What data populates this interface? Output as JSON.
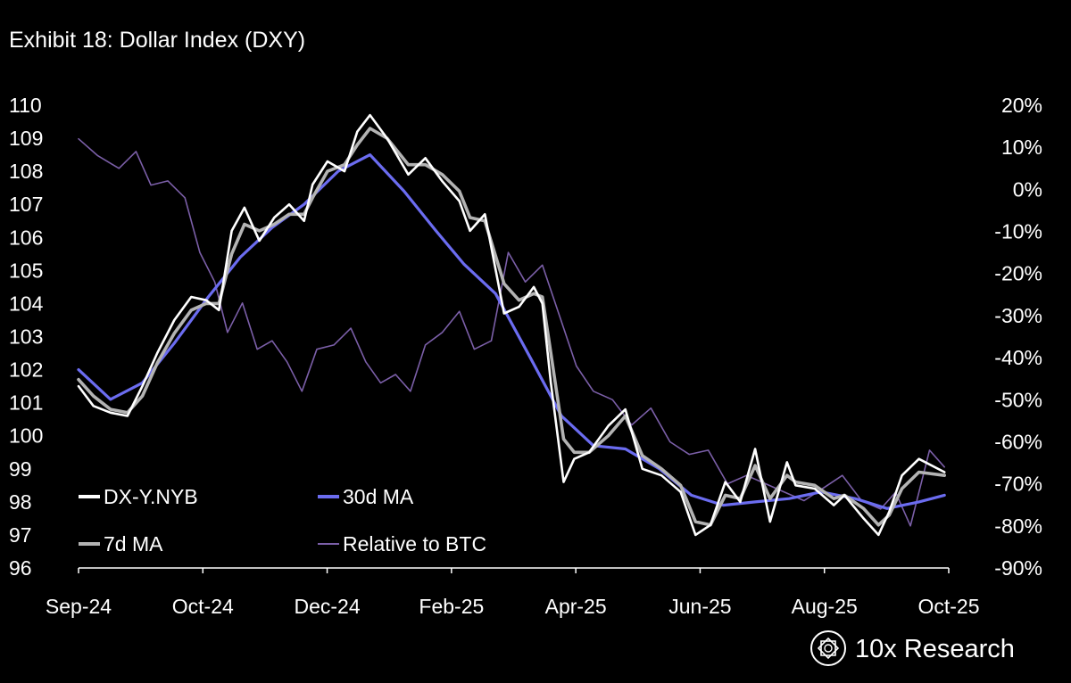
{
  "chart_data": {
    "type": "line",
    "title": "Exhibit 18: Dollar Index (DXY)",
    "brand": "10x Research",
    "x_tick_labels": [
      "Sep-24",
      "Oct-24",
      "Dec-24",
      "Feb-25",
      "Apr-25",
      "Jun-25",
      "Aug-25",
      "Oct-25"
    ],
    "x_domain": [
      "2024-09-01",
      "2025-10-15"
    ],
    "y_left": {
      "min": 96,
      "max": 110,
      "ticks": [
        "110",
        "109",
        "108",
        "107",
        "106",
        "105",
        "104",
        "103",
        "102",
        "101",
        "100",
        "99",
        "98",
        "97",
        "96"
      ]
    },
    "y_right": {
      "min": -90,
      "max": 20,
      "unit": "%",
      "ticks": [
        "20%",
        "10%",
        "0%",
        "-10%",
        "-20%",
        "-30%",
        "-40%",
        "-50%",
        "-60%",
        "-70%",
        "-80%",
        "-90%"
      ]
    },
    "legend": [
      {
        "label": "DX-Y.NYB",
        "color": "#ffffff",
        "axis": "left"
      },
      {
        "label": "30d MA",
        "color": "#6b6cf0",
        "axis": "left"
      },
      {
        "label": "7d MA",
        "color": "#b3b3b3",
        "axis": "left"
      },
      {
        "label": "Relative to BTC",
        "color": "#7b5fa8",
        "axis": "right"
      }
    ],
    "series": [
      {
        "name": "DX-Y.NYB",
        "axis": "left",
        "x": [
          "2024-09-01",
          "2024-09-08",
          "2024-09-16",
          "2024-09-24",
          "2024-10-01",
          "2024-10-08",
          "2024-10-16",
          "2024-10-24",
          "2024-10-31",
          "2024-11-06",
          "2024-11-12",
          "2024-11-18",
          "2024-11-25",
          "2024-12-02",
          "2024-12-09",
          "2024-12-16",
          "2024-12-20",
          "2024-12-27",
          "2025-01-04",
          "2025-01-10",
          "2025-01-16",
          "2025-01-24",
          "2025-02-03",
          "2025-02-11",
          "2025-02-19",
          "2025-02-27",
          "2025-03-04",
          "2025-03-11",
          "2025-03-20",
          "2025-03-27",
          "2025-04-03",
          "2025-04-07",
          "2025-04-11",
          "2025-04-17",
          "2025-04-22",
          "2025-04-29",
          "2025-05-08",
          "2025-05-16",
          "2025-05-24",
          "2025-06-02",
          "2025-06-11",
          "2025-06-18",
          "2025-06-25",
          "2025-07-02",
          "2025-07-09",
          "2025-07-16",
          "2025-07-23",
          "2025-07-31",
          "2025-08-04",
          "2025-08-13",
          "2025-08-22",
          "2025-08-27",
          "2025-09-05",
          "2025-09-12",
          "2025-09-17",
          "2025-09-23",
          "2025-10-01",
          "2025-10-13"
        ],
        "y": [
          101.5,
          100.9,
          100.7,
          100.6,
          101.5,
          102.5,
          103.5,
          104.2,
          104.1,
          103.8,
          106.2,
          106.9,
          105.9,
          106.6,
          107.0,
          106.5,
          107.6,
          108.3,
          108.0,
          109.2,
          109.7,
          109.0,
          107.9,
          108.4,
          107.7,
          107.1,
          106.2,
          106.7,
          103.7,
          103.9,
          104.5,
          104.0,
          101.6,
          98.6,
          99.3,
          99.5,
          100.3,
          100.8,
          99.0,
          98.8,
          98.3,
          97.0,
          97.3,
          98.6,
          98.0,
          99.6,
          97.4,
          99.2,
          98.5,
          98.4,
          97.9,
          98.2,
          97.5,
          97.0,
          97.7,
          98.8,
          99.3,
          98.9
        ]
      },
      {
        "name": "7d MA",
        "axis": "left",
        "x": [
          "2024-09-01",
          "2024-09-08",
          "2024-09-16",
          "2024-09-24",
          "2024-10-01",
          "2024-10-08",
          "2024-10-16",
          "2024-10-24",
          "2024-10-31",
          "2024-11-06",
          "2024-11-12",
          "2024-11-18",
          "2024-11-25",
          "2024-12-02",
          "2024-12-09",
          "2024-12-16",
          "2024-12-20",
          "2024-12-27",
          "2025-01-04",
          "2025-01-10",
          "2025-01-16",
          "2025-01-24",
          "2025-02-03",
          "2025-02-11",
          "2025-02-19",
          "2025-02-27",
          "2025-03-04",
          "2025-03-11",
          "2025-03-20",
          "2025-03-27",
          "2025-04-03",
          "2025-04-07",
          "2025-04-11",
          "2025-04-17",
          "2025-04-22",
          "2025-04-29",
          "2025-05-08",
          "2025-05-16",
          "2025-05-24",
          "2025-06-02",
          "2025-06-11",
          "2025-06-18",
          "2025-06-25",
          "2025-07-02",
          "2025-07-09",
          "2025-07-16",
          "2025-07-23",
          "2025-07-31",
          "2025-08-04",
          "2025-08-13",
          "2025-08-22",
          "2025-08-27",
          "2025-09-05",
          "2025-09-12",
          "2025-09-17",
          "2025-09-23",
          "2025-10-01",
          "2025-10-13"
        ],
        "y": [
          101.7,
          101.2,
          100.8,
          100.7,
          101.2,
          102.2,
          103.1,
          103.8,
          104.0,
          104.0,
          105.5,
          106.4,
          106.2,
          106.4,
          106.7,
          106.7,
          107.2,
          108.0,
          108.2,
          108.8,
          109.3,
          109.0,
          108.2,
          108.2,
          107.9,
          107.4,
          106.6,
          106.5,
          104.6,
          104.1,
          104.3,
          104.2,
          102.5,
          99.9,
          99.5,
          99.5,
          100.0,
          100.6,
          99.4,
          99.0,
          98.5,
          97.4,
          97.3,
          98.2,
          98.1,
          99.1,
          98.1,
          98.8,
          98.6,
          98.5,
          98.1,
          98.2,
          97.8,
          97.3,
          97.6,
          98.4,
          98.9,
          98.8
        ]
      },
      {
        "name": "30d MA",
        "axis": "left",
        "x": [
          "2024-09-01",
          "2024-09-16",
          "2024-10-01",
          "2024-10-16",
          "2024-11-01",
          "2024-11-16",
          "2024-12-01",
          "2024-12-16",
          "2025-01-01",
          "2025-01-16",
          "2025-02-01",
          "2025-02-16",
          "2025-03-01",
          "2025-03-16",
          "2025-04-01",
          "2025-04-16",
          "2025-05-01",
          "2025-05-16",
          "2025-06-01",
          "2025-06-16",
          "2025-07-01",
          "2025-07-16",
          "2025-08-01",
          "2025-08-16",
          "2025-09-01",
          "2025-09-16",
          "2025-10-01",
          "2025-10-13"
        ],
        "y": [
          102.0,
          101.1,
          101.6,
          102.8,
          104.2,
          105.4,
          106.3,
          107.0,
          108.0,
          108.5,
          107.4,
          106.2,
          105.2,
          104.3,
          102.4,
          100.6,
          99.7,
          99.6,
          99.0,
          98.2,
          97.9,
          98.0,
          98.1,
          98.3,
          98.1,
          97.8,
          98.0,
          98.2
        ]
      },
      {
        "name": "Relative to BTC",
        "axis": "right",
        "x": [
          "2024-09-01",
          "2024-09-10",
          "2024-09-20",
          "2024-09-28",
          "2024-10-05",
          "2024-10-13",
          "2024-10-21",
          "2024-10-28",
          "2024-11-04",
          "2024-11-10",
          "2024-11-17",
          "2024-11-24",
          "2024-12-01",
          "2024-12-08",
          "2024-12-15",
          "2024-12-22",
          "2024-12-30",
          "2025-01-07",
          "2025-01-14",
          "2025-01-21",
          "2025-01-28",
          "2025-02-04",
          "2025-02-11",
          "2025-02-19",
          "2025-02-27",
          "2025-03-06",
          "2025-03-14",
          "2025-03-22",
          "2025-03-30",
          "2025-04-07",
          "2025-04-15",
          "2025-04-23",
          "2025-05-01",
          "2025-05-10",
          "2025-05-19",
          "2025-05-28",
          "2025-06-06",
          "2025-06-15",
          "2025-06-24",
          "2025-07-03",
          "2025-07-12",
          "2025-07-21",
          "2025-07-30",
          "2025-08-08",
          "2025-08-17",
          "2025-08-26",
          "2025-09-04",
          "2025-09-13",
          "2025-09-20",
          "2025-09-27",
          "2025-10-06",
          "2025-10-13"
        ],
        "y": [
          12,
          8,
          5,
          9,
          1,
          2,
          -2,
          -15,
          -22,
          -34,
          -27,
          -38,
          -36,
          -41,
          -48,
          -38,
          -37,
          -33,
          -41,
          -46,
          -44,
          -48,
          -37,
          -34,
          -29,
          -38,
          -36,
          -15,
          -22,
          -18,
          -30,
          -42,
          -48,
          -50,
          -56,
          -52,
          -60,
          -63,
          -62,
          -70,
          -68,
          -70,
          -72,
          -74,
          -71,
          -68,
          -74,
          -76,
          -72,
          -80,
          -62,
          -66
        ]
      }
    ]
  }
}
